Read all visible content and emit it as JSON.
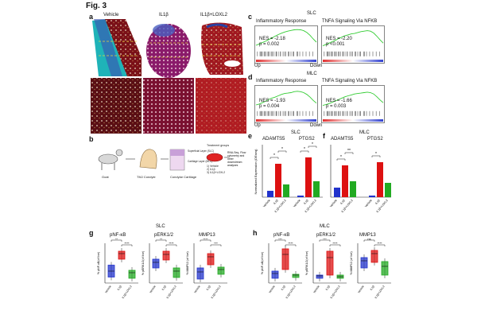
{
  "figure": {
    "title": "Fig. 3",
    "panel_labels": {
      "a": "a",
      "b": "b",
      "c": "c",
      "d": "d",
      "e": "e",
      "f": "f",
      "g": "g",
      "h": "h"
    }
  },
  "panel_a": {
    "col_labels": [
      "Vehicle",
      "IL1β",
      "IL1β+LOXL2"
    ]
  },
  "panel_b": {
    "labels": [
      "Goat",
      "TMJ Condyle",
      "Condylar Cartilage",
      "Superficial Layer (SLC)",
      "Cartilage Layer (MLC)",
      "Treatment groups",
      "1) Vehicle",
      "2) IL1β",
      "3) IL1β+LOXL2",
      "RNA-Seq, Flow cytometry and other downstream analyses"
    ]
  },
  "panel_c": {
    "group": "SLC",
    "plots": [
      {
        "title": "Inflammatory Response",
        "nes": "NES = -2.18",
        "p": "p = 0.002"
      },
      {
        "title": "TNFA Signaling Via NFKB",
        "nes": "NES = -2.20",
        "p": "p <0.001"
      }
    ],
    "axis_left": "Up",
    "axis_right": "Down"
  },
  "panel_d": {
    "group": "MLC",
    "plots": [
      {
        "title": "Inflammatory Response",
        "nes": "NES = -1.93",
        "p": "p = 0.004"
      },
      {
        "title": "TNFA Signaling Via NFKB",
        "nes": "NES = -1.66",
        "p": "p = 0.003"
      }
    ],
    "axis_left": "Up",
    "axis_right": "Down"
  },
  "panel_e": {
    "group": "SLC",
    "ylabel": "Normalized Expression (DEseq)",
    "genes": [
      {
        "name": "ADAMTS5"
      },
      {
        "name": "PTGS2"
      }
    ],
    "xlabels": [
      "Vehicle",
      "IL1β",
      "IL1β+LOXL2"
    ],
    "sig": [
      "*",
      "*",
      "*",
      "*"
    ]
  },
  "panel_f": {
    "group": "MLC",
    "genes": [
      {
        "name": "ADAMTS5"
      },
      {
        "name": "PTGS2"
      }
    ],
    "xlabels": [
      "Vehicle",
      "IL1β",
      "IL1β+LOXL2"
    ],
    "sig": [
      "*",
      "**",
      "*",
      "*"
    ]
  },
  "panel_g": {
    "group": "SLC",
    "plots": [
      {
        "title": "pNF-κB",
        "ylabel": "% pNF-κB(of live)",
        "sig": [
          "**",
          "****"
        ]
      },
      {
        "title": "pERK1/2",
        "ylabel": "% pERK1/2(of live)",
        "sig": [
          "**",
          "****"
        ]
      },
      {
        "title": "MMP13",
        "ylabel": "% MMP13 (of live)",
        "sig": [
          "****",
          "***"
        ]
      }
    ],
    "xlabels": [
      "Vehicle",
      "IL1β",
      "IL1β+LOXL2"
    ]
  },
  "panel_h": {
    "group": "MLC",
    "plots": [
      {
        "title": "pNF-κB",
        "ylabel": "% pNF-κB(of live)",
        "sig": [
          "***",
          "****"
        ]
      },
      {
        "title": "pERK1/2",
        "ylabel": "% pERK1/2(of live)",
        "sig": [
          "***",
          "****"
        ]
      },
      {
        "title": "MMP13",
        "ylabel": "% MMP13 (of live)",
        "sig": [
          "ns",
          "****"
        ]
      }
    ],
    "xlabels": [
      "Vehicle",
      "IL1β",
      "IL1β+LOXL2"
    ]
  },
  "colors": {
    "vehicle": "#2233cc",
    "il1b": "#dd1111",
    "loxl2": "#22aa22",
    "gsea_curve": "#33cc33",
    "tissue_dark": "#4a0f14",
    "tissue_red": "#b01c22",
    "stain_blue": "#3a4fb0",
    "stain_cyan": "#1fb3b8"
  }
}
